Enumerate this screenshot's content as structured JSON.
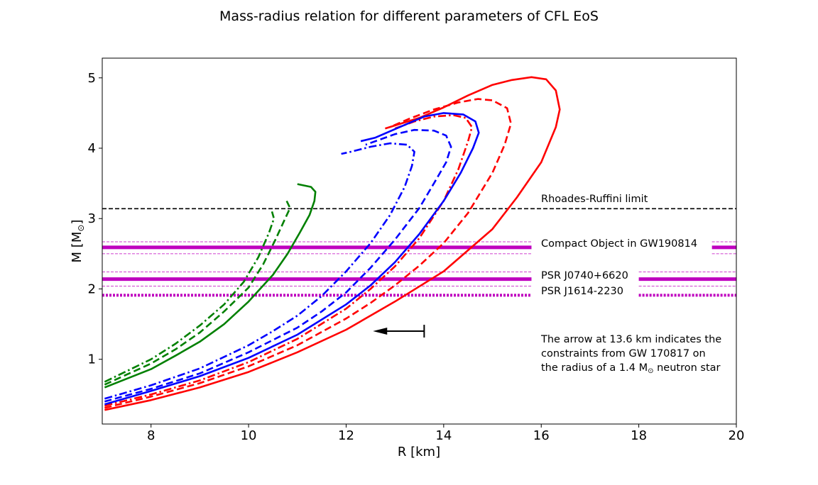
{
  "chart_data": {
    "type": "line",
    "title": "Mass-radius relation for different parameters of CFL EoS",
    "xlabel": "R [km]",
    "ylabel_main": "M [M",
    "ylabel_sub": "⊙",
    "ylabel_close": "]",
    "xlim": [
      7.0,
      20.0
    ],
    "ylim": [
      0.08,
      5.28
    ],
    "xticks": [
      8,
      10,
      12,
      14,
      16,
      18,
      20
    ],
    "xtick_labels": [
      "8",
      "10",
      "12",
      "14",
      "16",
      "18",
      "20"
    ],
    "yticks": [
      1,
      2,
      3,
      4,
      5
    ],
    "ytick_labels": [
      "1",
      "2",
      "3",
      "4",
      "5"
    ],
    "colors": {
      "red": "#ff0000",
      "blue": "#0000ff",
      "green": "#008000",
      "magenta": "#bf00bf",
      "black": "#000000"
    },
    "series": [
      {
        "name": "red-solid",
        "color": "red",
        "dash": "solid",
        "points": [
          [
            7.05,
            0.28
          ],
          [
            8,
            0.42
          ],
          [
            9,
            0.6
          ],
          [
            10,
            0.82
          ],
          [
            11,
            1.1
          ],
          [
            12,
            1.42
          ],
          [
            13,
            1.82
          ],
          [
            14,
            2.25
          ],
          [
            15,
            2.85
          ],
          [
            15.5,
            3.3
          ],
          [
            16,
            3.8
          ],
          [
            16.3,
            4.3
          ],
          [
            16.38,
            4.55
          ],
          [
            16.3,
            4.82
          ],
          [
            16.1,
            4.98
          ],
          [
            15.8,
            5.01
          ],
          [
            15.4,
            4.97
          ],
          [
            15,
            4.9
          ],
          [
            14.5,
            4.75
          ],
          [
            14,
            4.58
          ],
          [
            13.5,
            4.43
          ],
          [
            12.8,
            4.28
          ]
        ]
      },
      {
        "name": "red-dashed",
        "color": "red",
        "dash": "dashed",
        "points": [
          [
            7.05,
            0.31
          ],
          [
            8,
            0.47
          ],
          [
            9,
            0.66
          ],
          [
            10,
            0.9
          ],
          [
            11,
            1.2
          ],
          [
            12,
            1.58
          ],
          [
            12.5,
            1.8
          ],
          [
            13,
            2.05
          ],
          [
            13.5,
            2.33
          ],
          [
            14,
            2.65
          ],
          [
            14.5,
            3.08
          ],
          [
            15,
            3.65
          ],
          [
            15.25,
            4.05
          ],
          [
            15.38,
            4.35
          ],
          [
            15.3,
            4.57
          ],
          [
            15,
            4.68
          ],
          [
            14.7,
            4.7
          ],
          [
            14.3,
            4.65
          ],
          [
            13.8,
            4.55
          ],
          [
            13.3,
            4.42
          ],
          [
            12.9,
            4.3
          ]
        ]
      },
      {
        "name": "red-dashdot",
        "color": "red",
        "dash": "dashdot",
        "points": [
          [
            7.05,
            0.34
          ],
          [
            8,
            0.5
          ],
          [
            9,
            0.7
          ],
          [
            10,
            0.96
          ],
          [
            11,
            1.29
          ],
          [
            12,
            1.72
          ],
          [
            12.5,
            2.0
          ],
          [
            13,
            2.32
          ],
          [
            13.5,
            2.72
          ],
          [
            14,
            3.25
          ],
          [
            14.3,
            3.7
          ],
          [
            14.5,
            4.1
          ],
          [
            14.58,
            4.3
          ],
          [
            14.45,
            4.43
          ],
          [
            14.2,
            4.47
          ],
          [
            13.8,
            4.45
          ],
          [
            13.4,
            4.38
          ],
          [
            13.0,
            4.28
          ]
        ]
      },
      {
        "name": "blue-solid",
        "color": "blue",
        "dash": "solid",
        "points": [
          [
            7.05,
            0.36
          ],
          [
            8,
            0.55
          ],
          [
            9,
            0.76
          ],
          [
            10,
            1.02
          ],
          [
            11,
            1.35
          ],
          [
            12,
            1.78
          ],
          [
            12.5,
            2.05
          ],
          [
            13,
            2.38
          ],
          [
            13.5,
            2.78
          ],
          [
            14,
            3.25
          ],
          [
            14.35,
            3.65
          ],
          [
            14.6,
            4.0
          ],
          [
            14.72,
            4.22
          ],
          [
            14.65,
            4.38
          ],
          [
            14.4,
            4.48
          ],
          [
            14.0,
            4.5
          ],
          [
            13.6,
            4.45
          ],
          [
            13.1,
            4.3
          ],
          [
            12.6,
            4.15
          ],
          [
            12.3,
            4.1
          ]
        ]
      },
      {
        "name": "blue-dashed",
        "color": "blue",
        "dash": "dashed",
        "points": [
          [
            7.05,
            0.4
          ],
          [
            8,
            0.58
          ],
          [
            9,
            0.8
          ],
          [
            10,
            1.1
          ],
          [
            11,
            1.45
          ],
          [
            11.5,
            1.68
          ],
          [
            12,
            1.95
          ],
          [
            12.5,
            2.3
          ],
          [
            13,
            2.7
          ],
          [
            13.5,
            3.15
          ],
          [
            13.8,
            3.5
          ],
          [
            14.05,
            3.8
          ],
          [
            14.15,
            4.02
          ],
          [
            14.05,
            4.18
          ],
          [
            13.8,
            4.25
          ],
          [
            13.4,
            4.26
          ],
          [
            13.0,
            4.2
          ],
          [
            12.6,
            4.1
          ],
          [
            12.4,
            4.05
          ]
        ]
      },
      {
        "name": "blue-dashdot",
        "color": "blue",
        "dash": "dashdot",
        "points": [
          [
            7.05,
            0.44
          ],
          [
            8,
            0.63
          ],
          [
            9,
            0.87
          ],
          [
            10,
            1.2
          ],
          [
            10.5,
            1.4
          ],
          [
            11,
            1.62
          ],
          [
            11.5,
            1.9
          ],
          [
            12,
            2.25
          ],
          [
            12.5,
            2.65
          ],
          [
            12.9,
            3.05
          ],
          [
            13.2,
            3.45
          ],
          [
            13.35,
            3.75
          ],
          [
            13.4,
            3.95
          ],
          [
            13.25,
            4.05
          ],
          [
            12.9,
            4.07
          ],
          [
            12.5,
            4.02
          ],
          [
            12.1,
            3.95
          ],
          [
            11.9,
            3.92
          ]
        ]
      },
      {
        "name": "green-solid",
        "color": "green",
        "dash": "solid",
        "points": [
          [
            7.05,
            0.6
          ],
          [
            8,
            0.86
          ],
          [
            8.5,
            1.05
          ],
          [
            9,
            1.25
          ],
          [
            9.5,
            1.5
          ],
          [
            10,
            1.82
          ],
          [
            10.5,
            2.2
          ],
          [
            10.8,
            2.5
          ],
          [
            11.05,
            2.8
          ],
          [
            11.25,
            3.05
          ],
          [
            11.35,
            3.25
          ],
          [
            11.37,
            3.38
          ],
          [
            11.28,
            3.45
          ],
          [
            11.0,
            3.49
          ]
        ]
      },
      {
        "name": "green-dashed",
        "color": "green",
        "dash": "dashed",
        "points": [
          [
            7.05,
            0.64
          ],
          [
            8,
            0.94
          ],
          [
            8.5,
            1.14
          ],
          [
            9,
            1.38
          ],
          [
            9.5,
            1.68
          ],
          [
            10,
            2.02
          ],
          [
            10.3,
            2.35
          ],
          [
            10.55,
            2.7
          ],
          [
            10.75,
            3.0
          ],
          [
            10.85,
            3.15
          ],
          [
            10.78,
            3.25
          ]
        ]
      },
      {
        "name": "green-dashdot",
        "color": "green",
        "dash": "dashdot",
        "points": [
          [
            7.05,
            0.68
          ],
          [
            8,
            1.0
          ],
          [
            8.5,
            1.22
          ],
          [
            9,
            1.48
          ],
          [
            9.5,
            1.78
          ],
          [
            9.9,
            2.1
          ],
          [
            10.2,
            2.45
          ],
          [
            10.42,
            2.8
          ],
          [
            10.52,
            3.0
          ],
          [
            10.48,
            3.1
          ]
        ]
      }
    ],
    "reference_bands": [
      {
        "name": "Compact Object in GW190814",
        "label": "Compact Object in GW190814",
        "center": 2.59,
        "lower": 2.5,
        "upper": 2.67,
        "style": "solid"
      },
      {
        "name": "PSR J0740+6620",
        "label": "PSR J0740+6620",
        "center": 2.14,
        "lower": 2.04,
        "upper": 2.24,
        "style": "solid"
      },
      {
        "name": "PSR J1614-2230",
        "label": "PSR J1614-2230",
        "center": 1.91,
        "style": "dotted"
      }
    ],
    "rhoades_ruffini": {
      "label": "Rhoades-Ruffini limit",
      "value": 3.14
    },
    "arrow": {
      "from_r": 13.6,
      "to_r": 12.55,
      "m": 1.4
    },
    "note_lines": {
      "line1": "The arrow at 13.6 km indicates the",
      "line2": "constraints from GW 170817 on",
      "line3_pre": "the radius of a 1.4 M",
      "line3_sub": "⊙",
      "line3_post": " neutron star"
    }
  }
}
